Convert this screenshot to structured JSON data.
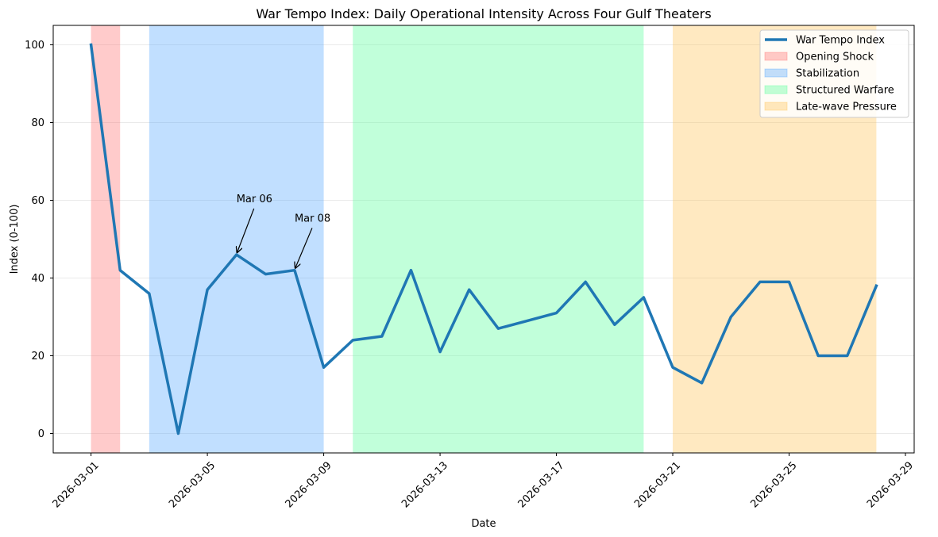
{
  "chart_data": {
    "type": "line",
    "title": "War Tempo Index: Daily Operational Intensity Across Four Gulf Theaters",
    "xlabel": "Date",
    "ylabel": "Index (0-100)",
    "ylim": [
      -5,
      105
    ],
    "x_range_days": [
      -1.3,
      28.3
    ],
    "start_date": "2026-03-01",
    "yticks": [
      0,
      20,
      40,
      60,
      80,
      100
    ],
    "xticks": [
      {
        "day": 0,
        "label": "2026-03-01"
      },
      {
        "day": 4,
        "label": "2026-03-05"
      },
      {
        "day": 8,
        "label": "2026-03-09"
      },
      {
        "day": 12,
        "label": "2026-03-13"
      },
      {
        "day": 16,
        "label": "2026-03-17"
      },
      {
        "day": 20,
        "label": "2026-03-21"
      },
      {
        "day": 24,
        "label": "2026-03-25"
      },
      {
        "day": 28,
        "label": "2026-03-29"
      }
    ],
    "series": [
      {
        "name": "War Tempo Index",
        "color": "#1f77b4",
        "days": [
          0,
          1,
          2,
          3,
          4,
          5,
          6,
          7,
          8,
          9,
          10,
          11,
          12,
          13,
          14,
          15,
          16,
          17,
          18,
          19,
          20,
          21,
          22,
          23,
          24,
          25,
          26,
          27
        ],
        "values": [
          100,
          42,
          36,
          0,
          37,
          46,
          41,
          42,
          17,
          24,
          25,
          42,
          21,
          37,
          27,
          29,
          31,
          39,
          28,
          35,
          17,
          13,
          30,
          39,
          39,
          20,
          20,
          38
        ]
      }
    ],
    "phases": [
      {
        "name": "Opening Shock",
        "start_day": 0,
        "end_day": 1,
        "color": "#ff6b6b",
        "alpha": 0.35
      },
      {
        "name": "Stabilization",
        "start_day": 2,
        "end_day": 8,
        "color": "#4da3ff",
        "alpha": 0.35
      },
      {
        "name": "Structured Warfare",
        "start_day": 9,
        "end_day": 19,
        "color": "#5cff9d",
        "alpha": 0.38
      },
      {
        "name": "Late-wave Pressure",
        "start_day": 20,
        "end_day": 27,
        "color": "#ffc04d",
        "alpha": 0.35
      }
    ],
    "annotations": [
      {
        "text": "Mar 06",
        "day": 5,
        "value": 46,
        "text_day": 5,
        "text_value": 59.5
      },
      {
        "text": "Mar 08",
        "day": 7,
        "value": 42,
        "text_day": 7,
        "text_value": 54.5
      }
    ],
    "grid": "y",
    "legend_position": "top-right"
  }
}
